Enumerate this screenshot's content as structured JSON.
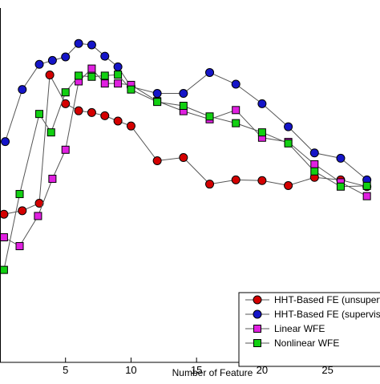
{
  "chart_data": {
    "type": "line",
    "xlabel": "Number of Feature",
    "ylabel": "",
    "title": "",
    "xlim": [
      0,
      29
    ],
    "ylim": [
      0,
      100
    ],
    "xticks": [
      5,
      10,
      15,
      20,
      25
    ],
    "xtick_labels": [
      "5",
      "10",
      "15",
      "20",
      "25"
    ],
    "grid": false,
    "legend_position": "bottom-right",
    "series": [
      {
        "name": "HHT-Based FE (unsupervised)",
        "color": "#d40000",
        "marker": "circle",
        "points": [
          [
            0.3,
            41.8
          ],
          [
            1.7,
            42.8
          ],
          [
            3,
            44.9
          ],
          [
            3.8,
            81.1
          ],
          [
            5,
            73.0
          ],
          [
            6,
            71.0
          ],
          [
            7,
            70.5
          ],
          [
            8,
            69.6
          ],
          [
            9,
            68.1
          ],
          [
            10,
            66.7
          ],
          [
            12,
            56.9
          ],
          [
            14,
            57.8
          ],
          [
            16,
            50.3
          ],
          [
            18,
            51.5
          ],
          [
            20,
            51.3
          ],
          [
            22,
            49.9
          ],
          [
            24,
            52.2
          ],
          [
            26,
            51.5
          ],
          [
            28,
            49.6
          ]
        ]
      },
      {
        "name": "HHT-Based FE (supervised)",
        "color": "#1515c8",
        "marker": "circle",
        "points": [
          [
            0.4,
            62.3
          ],
          [
            1.7,
            77.0
          ],
          [
            3,
            84.1
          ],
          [
            4,
            85.2
          ],
          [
            5,
            86.2
          ],
          [
            6,
            90.0
          ],
          [
            7,
            89.6
          ],
          [
            8,
            86.4
          ],
          [
            9,
            83.4
          ],
          [
            10,
            77.8
          ],
          [
            12,
            75.9
          ],
          [
            14,
            75.9
          ],
          [
            16,
            81.8
          ],
          [
            18,
            78.5
          ],
          [
            20,
            73.0
          ],
          [
            22,
            66.5
          ],
          [
            24,
            59.1
          ],
          [
            26,
            57.6
          ],
          [
            28,
            51.5
          ]
        ]
      },
      {
        "name": "Linear WFE",
        "color": "#e020e0",
        "marker": "square",
        "points": [
          [
            0.3,
            35.3
          ],
          [
            1.5,
            32.8
          ],
          [
            2.9,
            41.3
          ],
          [
            4,
            51.8
          ],
          [
            5,
            60.0
          ],
          [
            6,
            79.3
          ],
          [
            7,
            82.9
          ],
          [
            8,
            78.7
          ],
          [
            9,
            78.7
          ],
          [
            10,
            78.3
          ],
          [
            12,
            73.7
          ],
          [
            14,
            70.9
          ],
          [
            16,
            68.6
          ],
          [
            18,
            71.2
          ],
          [
            20,
            63.4
          ],
          [
            22,
            62.2
          ],
          [
            24,
            55.9
          ],
          [
            26,
            50.8
          ],
          [
            28,
            46.9
          ]
        ]
      },
      {
        "name": "Nonlinear WFE",
        "color": "#12d012",
        "marker": "square",
        "points": [
          [
            0.3,
            26.1
          ],
          [
            1.5,
            47.5
          ],
          [
            3,
            70.1
          ],
          [
            3.9,
            64.9
          ],
          [
            5,
            76.2
          ],
          [
            6,
            80.9
          ],
          [
            7,
            80.6
          ],
          [
            8,
            80.9
          ],
          [
            9,
            81.2
          ],
          [
            10,
            77.0
          ],
          [
            12,
            73.5
          ],
          [
            14,
            72.4
          ],
          [
            16,
            69.4
          ],
          [
            18,
            67.5
          ],
          [
            20,
            64.9
          ],
          [
            22,
            61.8
          ],
          [
            24,
            53.9
          ],
          [
            26,
            49.6
          ],
          [
            28,
            49.8
          ]
        ]
      }
    ]
  },
  "legend": {
    "entries": [
      "HHT-Based FE (unsupervised)",
      "HHT-Based FE (supervised)",
      "Linear WFE",
      "Nonlinear WFE"
    ]
  }
}
